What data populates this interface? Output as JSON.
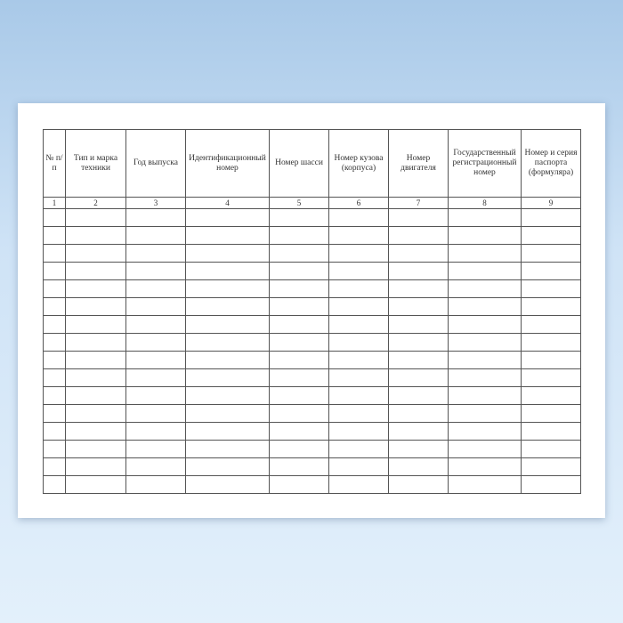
{
  "table": {
    "headers": [
      "№ п/п",
      "Тип  и марка техники",
      "Год выпуска",
      "Идентификационный номер",
      "Номер шасси",
      "Номер кузова (корпуса)",
      "Номер двигателя",
      "Государственный регистрационный номер",
      "Номер и серия паспорта (формуляра)"
    ],
    "column_numbers": [
      "1",
      "2",
      "3",
      "4",
      "5",
      "6",
      "7",
      "8",
      "9"
    ],
    "empty_rows": 16
  }
}
